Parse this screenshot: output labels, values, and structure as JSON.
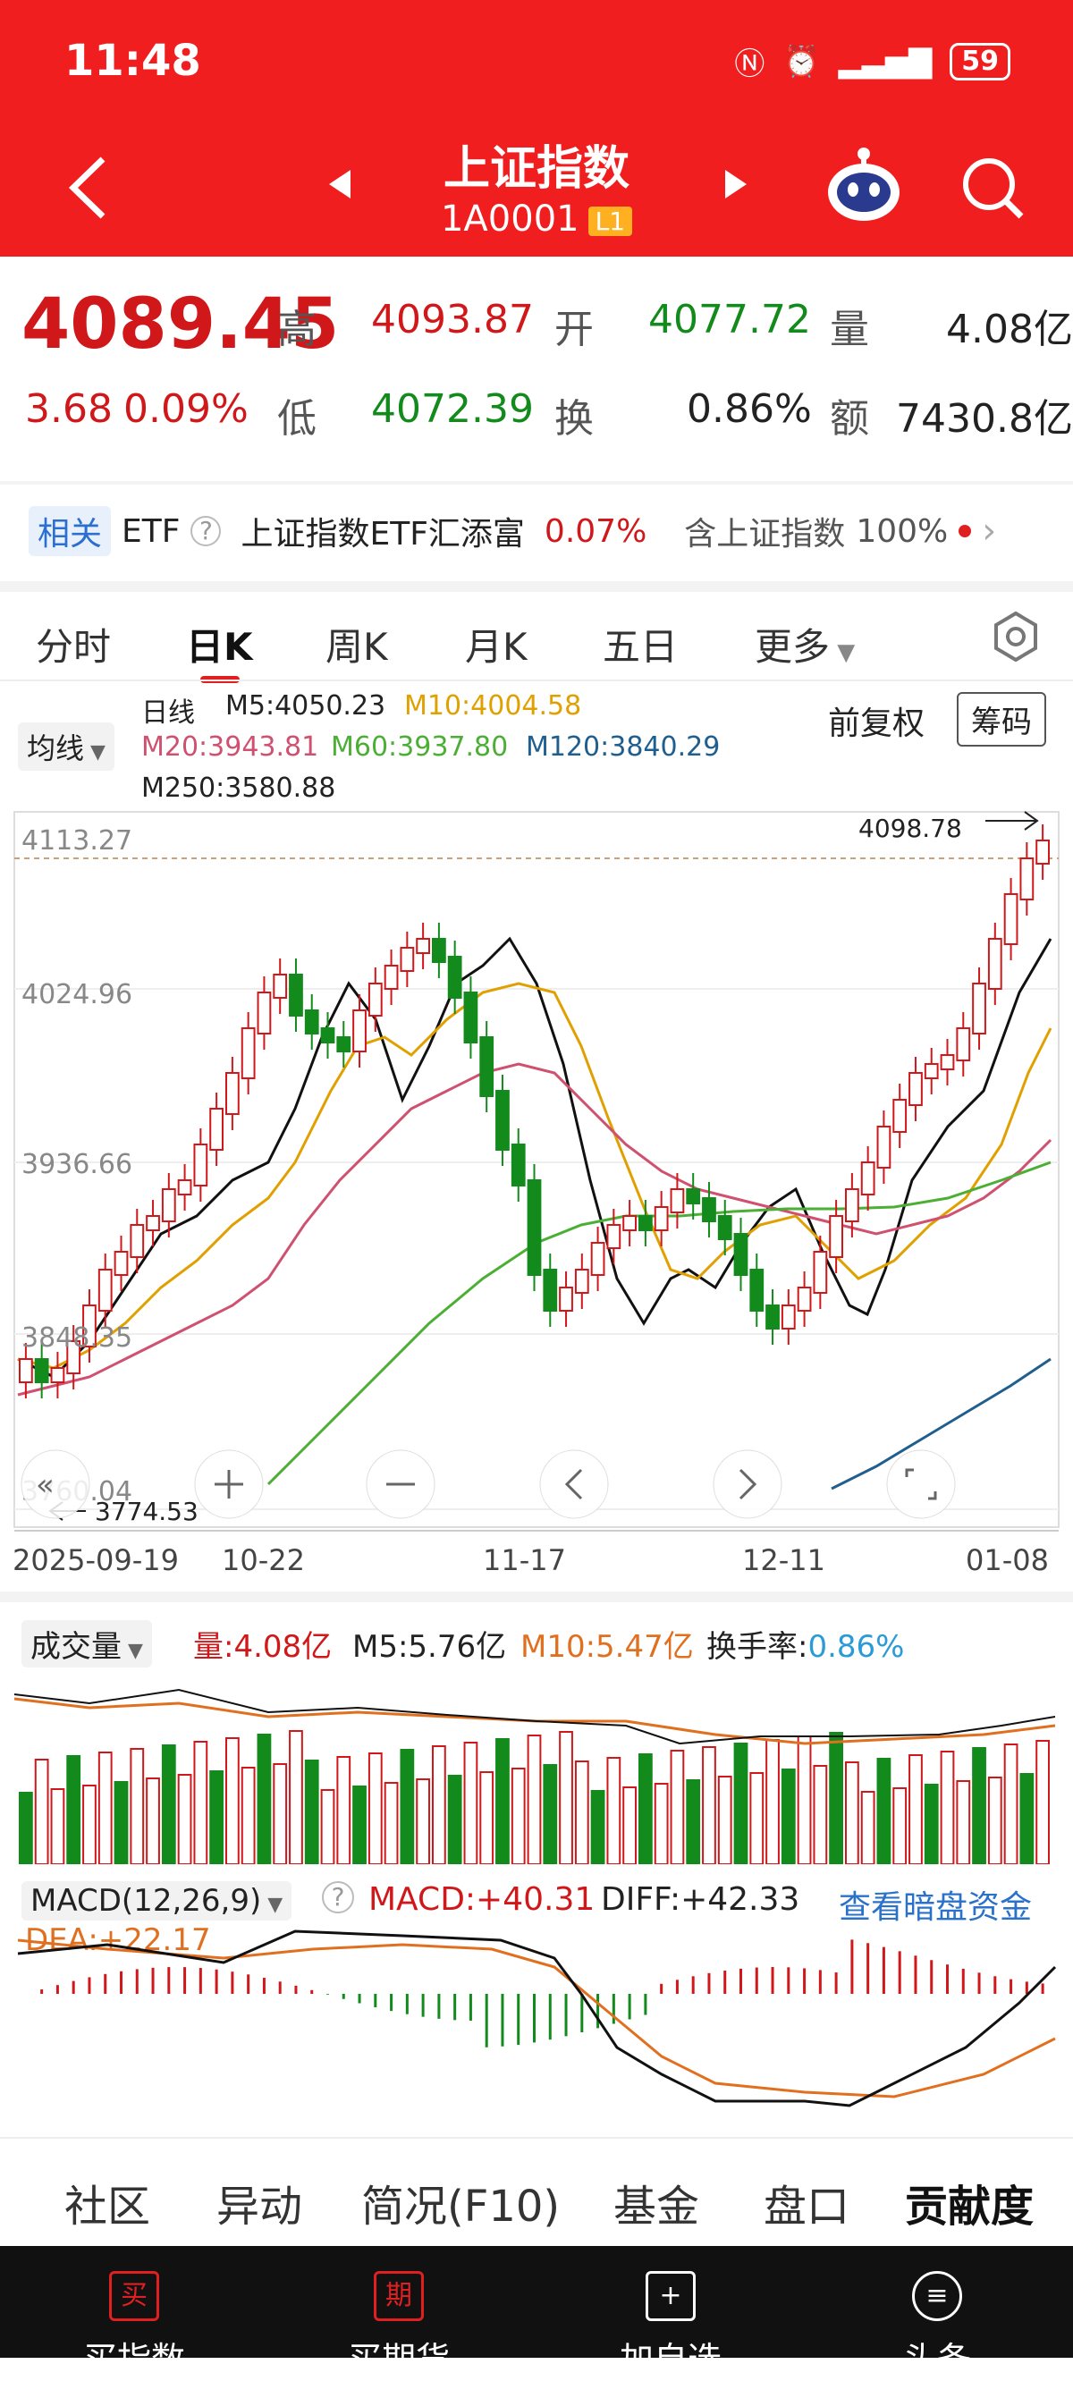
{
  "status": {
    "time": "11:48",
    "icons": [
      "nfc-icon",
      "alarm-icon",
      "signal-icon"
    ],
    "battery": "59"
  },
  "header": {
    "title": "上证指数",
    "code": "1A0001",
    "level": "L1"
  },
  "quote": {
    "price": "4089.45",
    "change": "3.68",
    "change_pct": "0.09%",
    "high_label": "高",
    "high": "4093.87",
    "open_label": "开",
    "open": "4077.72",
    "vol_label": "量",
    "vol": "4.08亿",
    "low_label": "低",
    "low": "4072.39",
    "turn_label": "换",
    "turn": "0.86%",
    "amt_label": "额",
    "amt": "7430.8亿"
  },
  "etf": {
    "tag": "相关",
    "label": "ETF",
    "name": "上证指数ETF汇添富",
    "pct": "0.07%",
    "contains": "含上证指数",
    "weight": "100%"
  },
  "tabs": [
    "分时",
    "日K",
    "周K",
    "月K",
    "五日",
    "更多"
  ],
  "ma": {
    "selector": "均线",
    "day": "日线",
    "m5": "M5:4050.23",
    "m10": "M10:4004.58",
    "m20": "M20:3943.81",
    "m60": "M60:3937.80",
    "m120": "M120:3840.29",
    "m250": "M250:3580.88",
    "adjust": "前复权",
    "chips": "筹码"
  },
  "price_axis": {
    "p1": "4113.27",
    "p2": "4024.96",
    "p3": "3936.66",
    "p4": "3848.35",
    "p5": "3760.04",
    "high_mark": "4098.78",
    "low_mark": "3774.53"
  },
  "dates": [
    "2025-09-19",
    "10-22",
    "11-17",
    "12-11",
    "01-08"
  ],
  "volume": {
    "selector": "成交量",
    "vol": "量:4.08亿",
    "m5": "M5:5.76亿",
    "m10": "M10:5.47亿",
    "turnover_label": "换手率:",
    "turnover": "0.86%"
  },
  "macd": {
    "selector": "MACD(12,26,9)",
    "macd": "MACD:+40.31",
    "diff": "DIFF:+42.33",
    "dea": "DEA:+22.17",
    "link": "查看暗盘资金"
  },
  "bottom_tabs": [
    "社区",
    "异动",
    "简况(F10)",
    "基金",
    "盘口",
    "贡献度"
  ],
  "nav": [
    {
      "icon": "买",
      "label": "买指数"
    },
    {
      "icon": "期",
      "label": "买期货"
    },
    {
      "icon": "+",
      "label": "加自选"
    },
    {
      "icon": "≡",
      "label": "头条"
    }
  ],
  "colors": {
    "header": "#f01e1e",
    "up": "#d0181b",
    "down": "#138a1c",
    "m5": "#111111",
    "m10": "#e0a000",
    "m20": "#d05070",
    "m60": "#4caf35",
    "m120": "#1f5f8f"
  }
}
